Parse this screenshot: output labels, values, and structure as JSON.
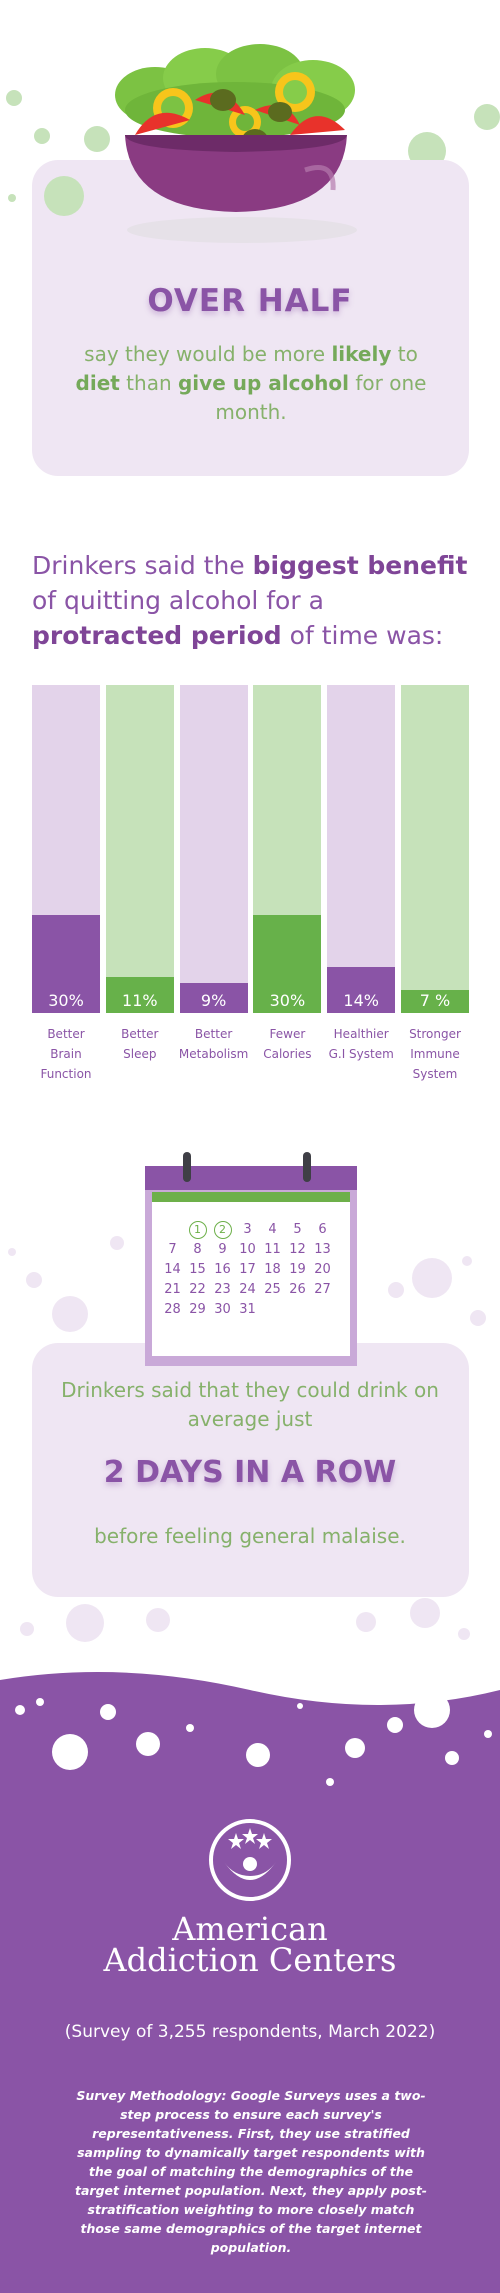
{
  "section1": {
    "headline": "OVER HALF",
    "lead_pre": "say they would be more ",
    "lead_b1": "likely",
    "lead_mid1": " to ",
    "lead_b2": "diet",
    "lead_mid2": " than ",
    "lead_b3": "give up alcohol",
    "lead_post": " for one month."
  },
  "section2": {
    "heading_pre": "Drinkers said the ",
    "heading_b1": "biggest benefit",
    "heading_mid": " of quitting alcohol for a ",
    "heading_b2": "protracted period",
    "heading_post": " of time was:"
  },
  "chart_data": {
    "type": "bar",
    "categories": [
      "Better Brain Function",
      "Better Sleep",
      "Better Metabolism",
      "Fewer Calories",
      "Healthier G.I System",
      "Stronger Immune System"
    ],
    "values": [
      30,
      11,
      9,
      30,
      14,
      7
    ],
    "value_labels": [
      "30%",
      "11%",
      "9%",
      "30%",
      "14%",
      "7 %"
    ],
    "label_lines": [
      [
        "Better",
        "Brain",
        "Function"
      ],
      [
        "Better",
        "Sleep"
      ],
      [
        "Better",
        "Metabolism"
      ],
      [
        "Fewer",
        "Calories"
      ],
      [
        "Healthier",
        "G.I System"
      ],
      [
        "Stronger",
        "Immune",
        "System"
      ]
    ],
    "ylim": [
      0,
      100
    ],
    "colors": {
      "purple_bg": "#e3d3ea",
      "purple_fill": "#8a54a6",
      "green_bg": "#c6e2ba",
      "green_fill": "#67b14a"
    }
  },
  "calendar": {
    "rows": [
      [
        "",
        "",
        "1",
        "2",
        "3",
        "4",
        "5",
        "6"
      ],
      [
        "7",
        "8",
        "9",
        "10",
        "11",
        "12",
        "13"
      ],
      [
        "14",
        "15",
        "16",
        "17",
        "18",
        "19",
        "20"
      ],
      [
        "21",
        "22",
        "23",
        "24",
        "25",
        "26",
        "27"
      ],
      [
        "28",
        "29",
        "30",
        "31"
      ]
    ],
    "highlighted": [
      "1",
      "2"
    ]
  },
  "section3": {
    "lead": "Drinkers said that they could drink on average just",
    "headline": "2 DAYS IN A ROW",
    "tail": "before feeling general malaise."
  },
  "footer": {
    "org_line1": "American",
    "org_line2": "Addiction Centers",
    "survey": "(Survey of 3,255 respondents, March 2022)",
    "methodology": "Survey Methodology: Google Surveys uses a two-step process to ensure each survey's representativeness. First, they use stratified sampling to dynamically target respondents with the goal of matching the demographics of the target internet population. Next, they apply post-stratification weighting to more closely match those same demographics of the target internet population."
  },
  "colors": {
    "purple": "#8a54a6",
    "green": "#86b16b",
    "card_bg": "#efe6f3"
  }
}
